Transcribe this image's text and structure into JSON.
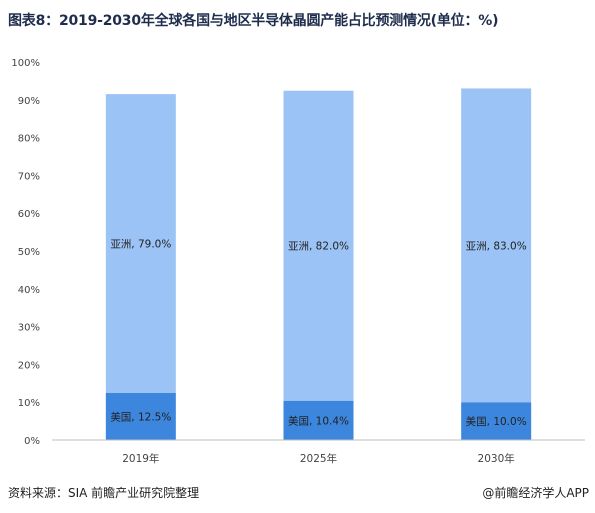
{
  "title": "图表8：2019-2030年全球各国与地区半导体晶圆产能占比预测情况(单位：%)",
  "footer": {
    "source": "资料来源：SIA 前瞻产业研究院整理",
    "brand": "@前瞻经济学人APP"
  },
  "colors": {
    "asia": "#9cc3f5",
    "usa": "#3d86de",
    "axis_text": "#444444",
    "axis_line": "#bfbfbf"
  },
  "chart_data": {
    "type": "bar",
    "stacked": true,
    "categories": [
      "2019年",
      "2025年",
      "2030年"
    ],
    "series": [
      {
        "name": "美国",
        "values": [
          12.5,
          10.4,
          10.0
        ],
        "labels": [
          "美国, 12.5%",
          "美国, 10.4%",
          "美国, 10.0%"
        ]
      },
      {
        "name": "亚洲",
        "values": [
          79.0,
          82.0,
          83.0
        ],
        "labels": [
          "亚洲, 79.0%",
          "亚洲, 82.0%",
          "亚洲, 83.0%"
        ]
      }
    ],
    "ylim": [
      0,
      100
    ],
    "yticks": [
      "0%",
      "10%",
      "20%",
      "30%",
      "40%",
      "50%",
      "60%",
      "70%",
      "80%",
      "90%",
      "100%"
    ],
    "grid": false
  }
}
